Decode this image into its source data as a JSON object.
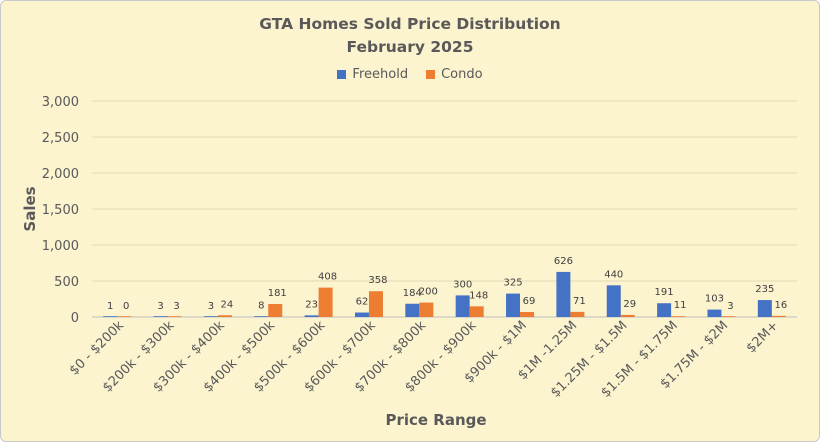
{
  "chart_data": {
    "type": "bar",
    "title": "GTA Homes Sold Price Distribution",
    "subtitle": "February 2025",
    "xlabel": "Price Range",
    "ylabel": "Sales",
    "ylim": [
      0,
      3000
    ],
    "yticks": [
      0,
      500,
      1000,
      1500,
      2000,
      2500,
      3000
    ],
    "ytick_labels": [
      "0",
      "500",
      "1,000",
      "1,500",
      "2,000",
      "2,500",
      "3,000"
    ],
    "grid": true,
    "legend_position": "top",
    "categories": [
      "$0 - $200k",
      "$200k - $300k",
      "$300k - $400k",
      "$400k - $500k",
      "$500k - $600k",
      "$600k - $700k",
      "$700k - $800k",
      "$800k - $900k",
      "$900k - $1M",
      "$1M -1.25M",
      "$1.25M - $1.5M",
      "$1.5M - $1.75M",
      "$1.75M - $2M",
      "$2M+"
    ],
    "series": [
      {
        "name": "Freehold",
        "color": "#4472c4",
        "values": [
          1,
          3,
          3,
          8,
          23,
          62,
          184,
          300,
          325,
          626,
          440,
          191,
          103,
          235
        ]
      },
      {
        "name": "Condo",
        "color": "#ed7d31",
        "values": [
          0,
          3,
          24,
          181,
          408,
          358,
          200,
          148,
          69,
          71,
          29,
          11,
          3,
          16
        ]
      }
    ]
  }
}
